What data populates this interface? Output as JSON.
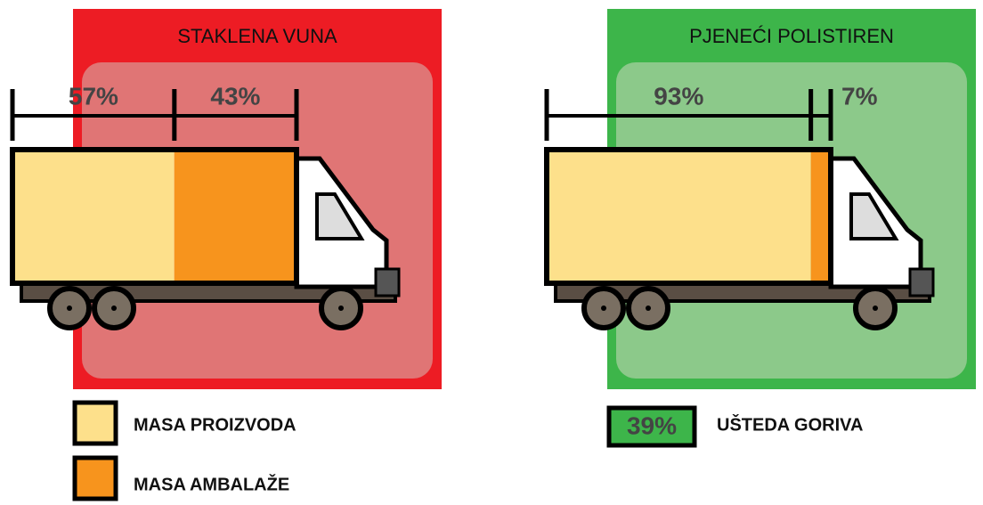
{
  "panels": [
    {
      "title": "STAKLENA VUNA",
      "color": "#ed1c24",
      "inner_color": "#e07575",
      "segments": [
        {
          "value": 57,
          "label": "57%"
        },
        {
          "value": 43,
          "label": "43%"
        }
      ]
    },
    {
      "title": "PJENEĆI POLISTIREN",
      "color": "#3db54a",
      "inner_color": "#8cc98a",
      "segments": [
        {
          "value": 93,
          "label": "93%"
        },
        {
          "value": 7,
          "label": "7%"
        }
      ]
    }
  ],
  "legend": {
    "items": [
      {
        "label": "MASA PROIZVODA",
        "color": "#fde08b"
      },
      {
        "label": "MASA AMBALAŽE",
        "color": "#f7941d"
      }
    ]
  },
  "savings": {
    "value": 39,
    "label": "39%",
    "text": "UŠTEDA GORIVA",
    "color": "#3db54a"
  }
}
